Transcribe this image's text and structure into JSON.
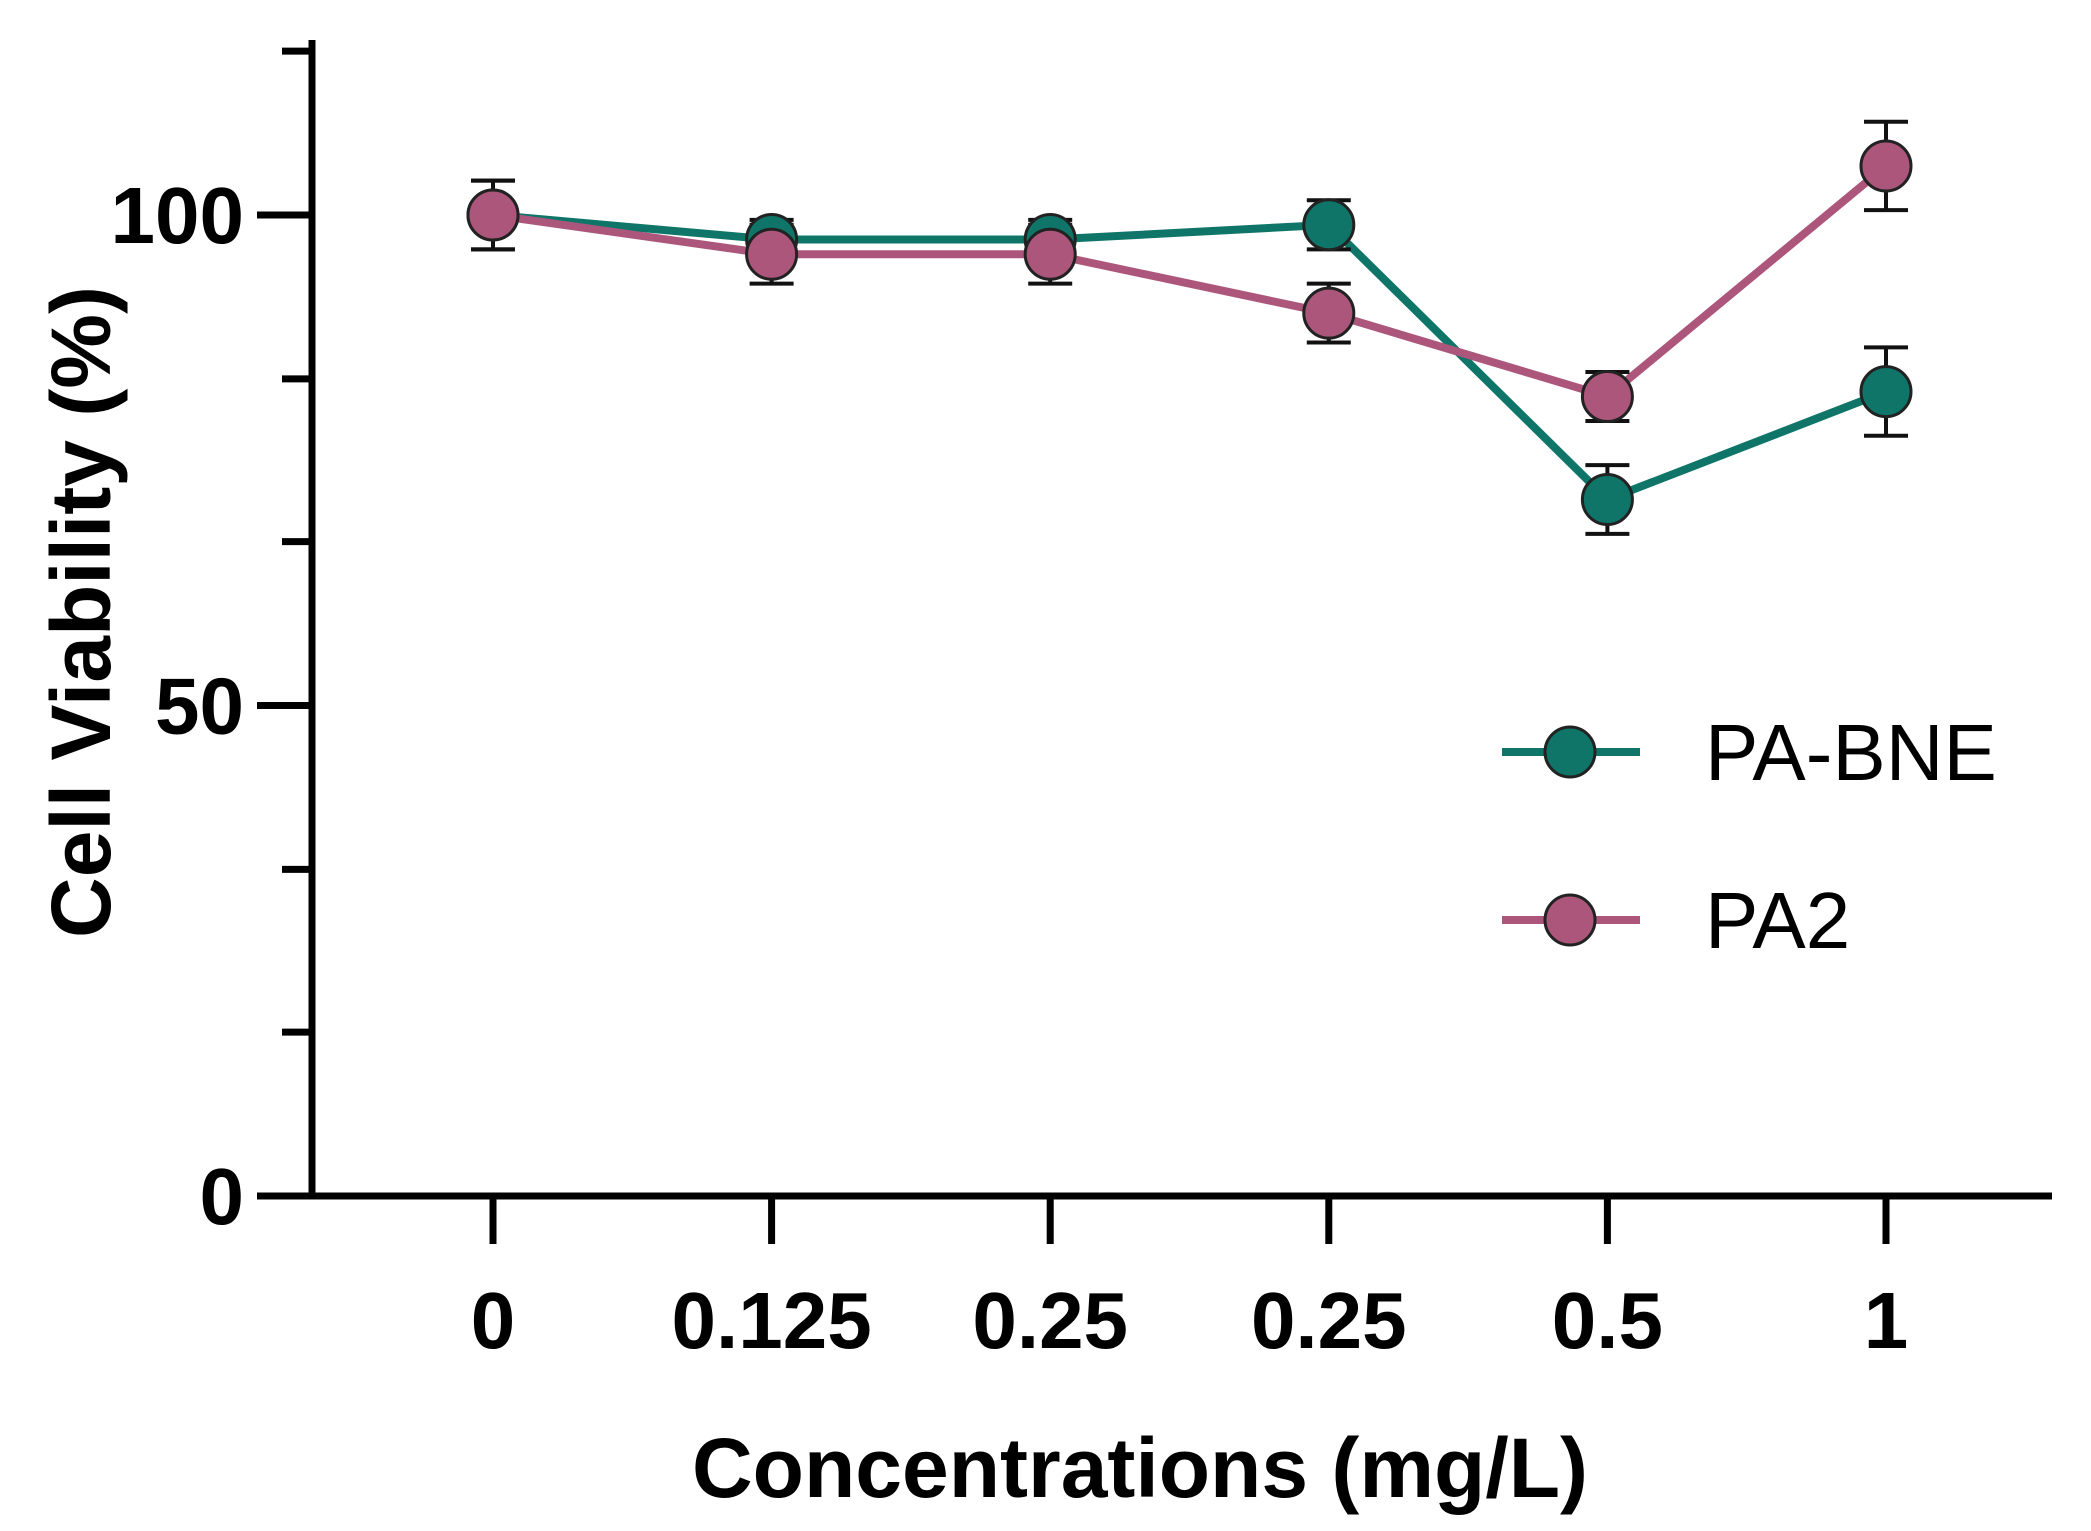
{
  "chart_data": {
    "type": "line",
    "title": "",
    "xlabel": "Concentrations (mg/L)",
    "ylabel": "Cell Viability (%)",
    "categories": [
      "0",
      "0.125",
      "0.25",
      "0.25",
      "0.5",
      "1"
    ],
    "ylim": [
      0,
      118
    ],
    "yticks_major": [
      0,
      50,
      100
    ],
    "yticks_minor": [
      16.7,
      33.3,
      66.7,
      83.3,
      116.7
    ],
    "grid": false,
    "legend_position": "right-middle",
    "series": [
      {
        "name": "PA-BNE",
        "color": "#0e7568",
        "values": [
          100,
          97.5,
          97.5,
          99,
          71,
          82
        ],
        "errors": [
          3.5,
          2,
          2,
          2.5,
          3.5,
          4.5
        ]
      },
      {
        "name": "PA2",
        "color": "#ad567c",
        "values": [
          100,
          96,
          96,
          90,
          81.5,
          105
        ],
        "errors": [
          3.5,
          3,
          3,
          3,
          2.5,
          4.5
        ]
      }
    ]
  }
}
